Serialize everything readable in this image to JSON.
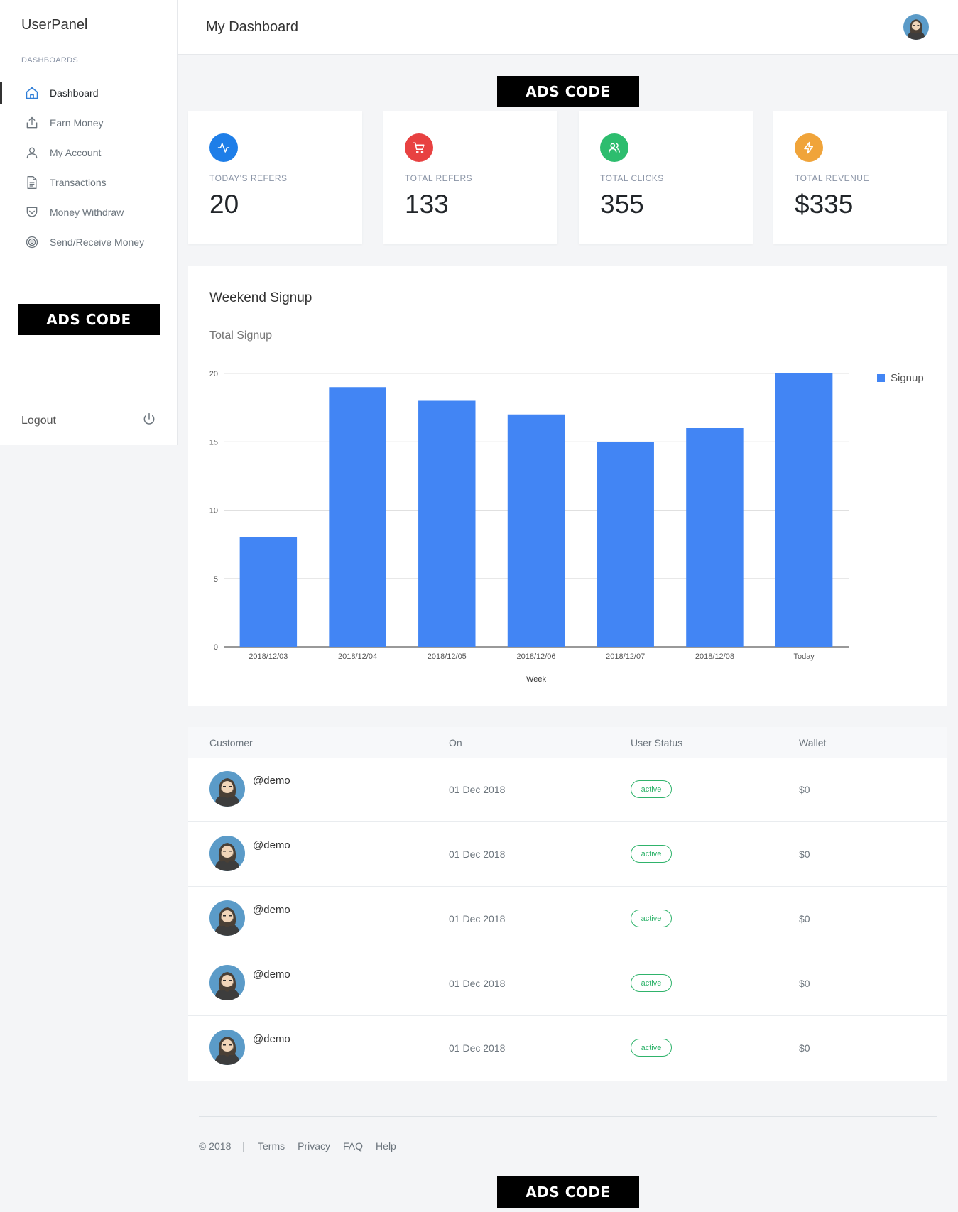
{
  "sidebar": {
    "brand": "UserPanel",
    "section_label": "DASHBOARDS",
    "items": [
      {
        "label": "Dashboard",
        "icon": "home-icon",
        "active": true
      },
      {
        "label": "Earn Money",
        "icon": "upload-icon",
        "active": false
      },
      {
        "label": "My Account",
        "icon": "user-icon",
        "active": false
      },
      {
        "label": "Transactions",
        "icon": "document-icon",
        "active": false
      },
      {
        "label": "Money Withdraw",
        "icon": "pocket-icon",
        "active": false
      },
      {
        "label": "Send/Receive Money",
        "icon": "target-icon",
        "active": false
      }
    ],
    "ads": "ADS CODE",
    "logout": "Logout",
    "logout_icon": "power-icon"
  },
  "header": {
    "title": "My Dashboard",
    "avatar": "user-avatar"
  },
  "ads_top": "ADS CODE",
  "ads_bottom": "ADS CODE",
  "stats": [
    {
      "label": "TODAY'S REFERS",
      "value": "20",
      "icon": "activity-icon",
      "color": "#1e7ee8"
    },
    {
      "label": "TOTAL REFERS",
      "value": "133",
      "icon": "cart-icon",
      "color": "#e84141"
    },
    {
      "label": "TOTAL CLICKS",
      "value": "355",
      "icon": "users-icon",
      "color": "#2dbd6e"
    },
    {
      "label": "TOTAL REVENUE",
      "value": "$335",
      "icon": "zap-icon",
      "color": "#f0a43a"
    }
  ],
  "chart_card": {
    "title": "Weekend Signup",
    "subtitle": "Total Signup"
  },
  "chart_data": {
    "type": "bar",
    "categories": [
      "2018/12/03",
      "2018/12/04",
      "2018/12/05",
      "2018/12/06",
      "2018/12/07",
      "2018/12/08",
      "Today"
    ],
    "series": [
      {
        "name": "Signup",
        "values": [
          8,
          19,
          18,
          17,
          15,
          16,
          20
        ],
        "color": "#4285f4"
      }
    ],
    "xlabel": "Week",
    "ylabel": "",
    "ylim": [
      0,
      20
    ],
    "yticks": [
      "0",
      "5",
      "10",
      "15",
      "20"
    ],
    "grid": true,
    "legend": "right"
  },
  "table": {
    "headers": [
      "Customer",
      "On",
      "User Status",
      "Wallet"
    ],
    "rows": [
      {
        "user": "@demo",
        "date": "01 Dec 2018",
        "status": "active",
        "wallet": "$0"
      },
      {
        "user": "@demo",
        "date": "01 Dec 2018",
        "status": "active",
        "wallet": "$0"
      },
      {
        "user": "@demo",
        "date": "01 Dec 2018",
        "status": "active",
        "wallet": "$0"
      },
      {
        "user": "@demo",
        "date": "01 Dec 2018",
        "status": "active",
        "wallet": "$0"
      },
      {
        "user": "@demo",
        "date": "01 Dec 2018",
        "status": "active",
        "wallet": "$0"
      }
    ]
  },
  "footer": {
    "copyright": "© 2018",
    "separator": "|",
    "links": [
      "Terms",
      "Privacy",
      "FAQ",
      "Help"
    ]
  }
}
